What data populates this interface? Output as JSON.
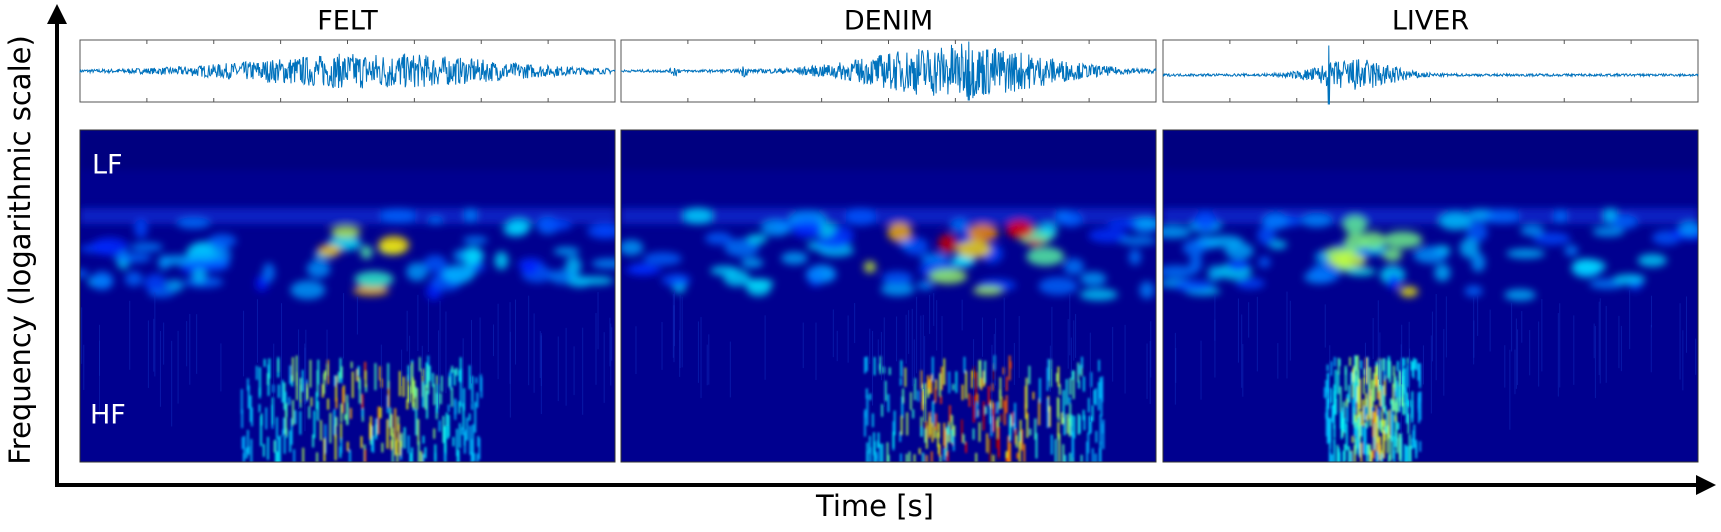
{
  "panels": [
    {
      "title": "FELT"
    },
    {
      "title": "DENIM"
    },
    {
      "title": "LIVER"
    }
  ],
  "band_labels": {
    "low": "LF",
    "high": "HF"
  },
  "y_axis_label": "Frequency (logarithmic scale)",
  "x_axis_label": "Time [s]"
}
